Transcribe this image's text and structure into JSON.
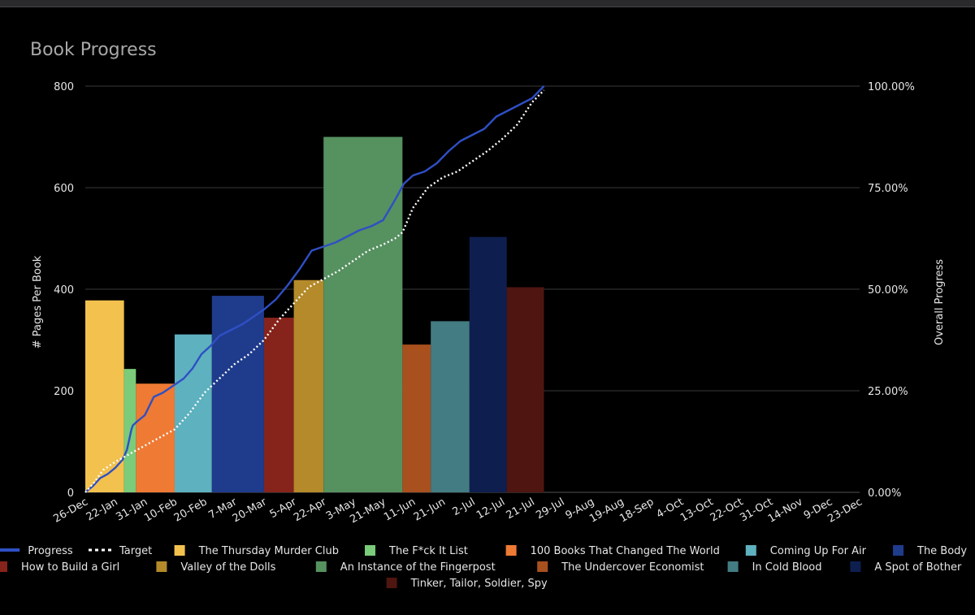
{
  "chart_data": {
    "type": "bar",
    "title": "Book Progress",
    "ylabel": "# Pages Per Book",
    "y2label": "Overall Progress",
    "ylim": [
      0,
      800
    ],
    "y2lim": [
      0,
      100
    ],
    "y_ticks": [
      "0",
      "200",
      "400",
      "600",
      "800"
    ],
    "y2_ticks": [
      "0.00%",
      "25.00%",
      "50.00%",
      "75.00%",
      "100.00%"
    ],
    "x_ticks": [
      "26-Dec",
      "22-Jan",
      "31-Jan",
      "10-Feb",
      "20-Feb",
      "7-Mar",
      "20-Mar",
      "5-Apr",
      "22-Apr",
      "3-May",
      "21-May",
      "11-Jun",
      "21-Jun",
      "2-Jul",
      "12-Jul",
      "21-Jul",
      "29-Jul",
      "9-Aug",
      "19-Aug",
      "18-Sep",
      "4-Oct",
      "13-Oct",
      "22-Oct",
      "31-Oct",
      "14-Nov",
      "9-Dec",
      "23-Dec"
    ],
    "grid": true,
    "legend_position": "bottom",
    "books": [
      {
        "name": "The Thursday Murder Club",
        "pages": 378,
        "start": 0,
        "end": 1.3,
        "color": "#f2c14e"
      },
      {
        "name": "The F*ck It List",
        "pages": 243,
        "start": 1.3,
        "end": 1.7,
        "color": "#7acb7a"
      },
      {
        "name": "100 Books That Changed The World",
        "pages": 214,
        "start": 1.7,
        "end": 3.0,
        "color": "#ee7a34"
      },
      {
        "name": "Coming Up For Air",
        "pages": 311,
        "start": 3.0,
        "end": 4.25,
        "color": "#5eb1bf"
      },
      {
        "name": "The Body",
        "pages": 387,
        "start": 4.25,
        "end": 6.0,
        "color": "#1f3b8c"
      },
      {
        "name": "How to Build a Girl",
        "pages": 344,
        "start": 6.0,
        "end": 7.0,
        "color": "#86231b"
      },
      {
        "name": "Valley of the Dolls",
        "pages": 418,
        "start": 7.0,
        "end": 8.0,
        "color": "#b48a2a"
      },
      {
        "name": "An Instance of the Fingerpost",
        "pages": 700,
        "start": 8.0,
        "end": 10.65,
        "color": "#569160"
      },
      {
        "name": "The Undercover Economist",
        "pages": 291,
        "start": 10.65,
        "end": 11.6,
        "color": "#a8501e"
      },
      {
        "name": "In Cold Blood",
        "pages": 337,
        "start": 11.6,
        "end": 12.9,
        "color": "#437c83"
      },
      {
        "name": "A Spot of Bother",
        "pages": 503,
        "start": 12.9,
        "end": 14.15,
        "color": "#0e1f4f"
      },
      {
        "name": "Tinker, Tailor, Soldier, Spy",
        "pages": 404,
        "start": 14.15,
        "end": 15.4,
        "color": "#4f1510"
      }
    ],
    "lines": [
      {
        "name": "Progress",
        "color": "#2f4fc4",
        "style": "solid",
        "x": [
          0,
          0.25,
          0.5,
          0.75,
          1.0,
          1.25,
          1.4,
          1.55,
          1.6,
          1.75,
          2.0,
          2.3,
          2.6,
          3.0,
          3.3,
          3.6,
          3.9,
          4.2,
          4.5,
          4.9,
          5.3,
          5.7,
          6.0,
          6.4,
          6.8,
          7.2,
          7.6,
          8.0,
          8.4,
          8.8,
          9.2,
          9.6,
          10.0,
          10.4,
          10.7,
          11.0,
          11.4,
          11.8,
          12.2,
          12.6,
          13.0,
          13.4,
          13.8,
          14.2,
          14.6,
          15.0,
          15.4
        ],
        "y": [
          0,
          1.5,
          3.5,
          4.5,
          6,
          8,
          10.5,
          15.5,
          16.5,
          17.5,
          19,
          23.5,
          24.5,
          26.5,
          28,
          30.5,
          34,
          36,
          38.5,
          40,
          41.5,
          43.5,
          45,
          47.5,
          51,
          55,
          59.5,
          60.5,
          61.5,
          63,
          64.5,
          65.5,
          67,
          72,
          76,
          78,
          79,
          81,
          84,
          86.5,
          88,
          89.5,
          92.5,
          94,
          95.5,
          97,
          100
        ]
      },
      {
        "name": "Target",
        "color": "#ffffff",
        "style": "dotted",
        "x": [
          0,
          0.3,
          0.6,
          1.0,
          1.5,
          2.0,
          2.5,
          3.0,
          3.5,
          4.0,
          4.5,
          5.0,
          5.5,
          6.0,
          6.5,
          7.0,
          7.5,
          8.0,
          8.5,
          9.0,
          9.5,
          10.0,
          10.4,
          10.65,
          11.0,
          11.5,
          12.0,
          12.5,
          13.0,
          13.5,
          14.0,
          14.5,
          15.0,
          15.4
        ],
        "y": [
          0,
          2.5,
          5.5,
          7.5,
          9.5,
          11.5,
          13.5,
          15.5,
          19.5,
          24.5,
          28,
          31.5,
          34,
          37.5,
          42.5,
          46.5,
          50.5,
          52.5,
          54.5,
          57,
          59.5,
          61,
          62.5,
          64,
          70,
          75,
          77.5,
          79,
          81.5,
          84,
          87,
          90.5,
          96,
          99
        ]
      }
    ]
  }
}
